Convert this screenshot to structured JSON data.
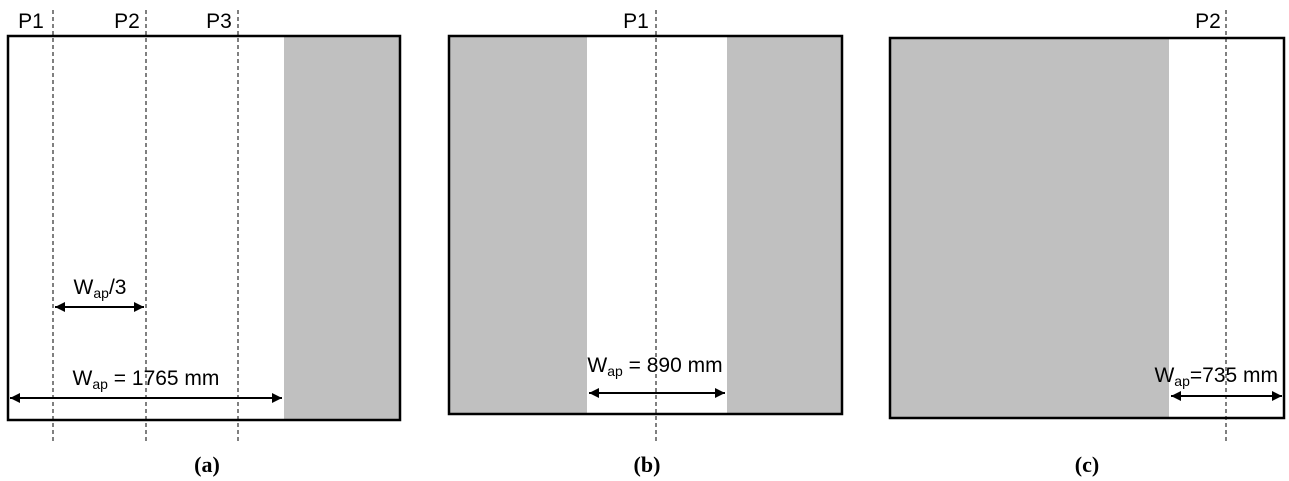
{
  "panels": [
    {
      "caption": "(a)",
      "markers": [
        "P1",
        "P2",
        "P3"
      ],
      "dims": [
        {
          "main": "W",
          "sub": "ap",
          "rest": "/3"
        },
        {
          "main": "W",
          "sub": "ap",
          "rest": " = 1765 mm"
        }
      ]
    },
    {
      "caption": "(b)",
      "markers": [
        "P1"
      ],
      "dims": [
        {
          "main": "W",
          "sub": "ap",
          "rest": " = 890 mm"
        }
      ]
    },
    {
      "caption": "(c)",
      "markers": [
        "P2"
      ],
      "dims": [
        {
          "main": "W",
          "sub": "ap",
          "rest": "=735 mm"
        }
      ]
    }
  ]
}
